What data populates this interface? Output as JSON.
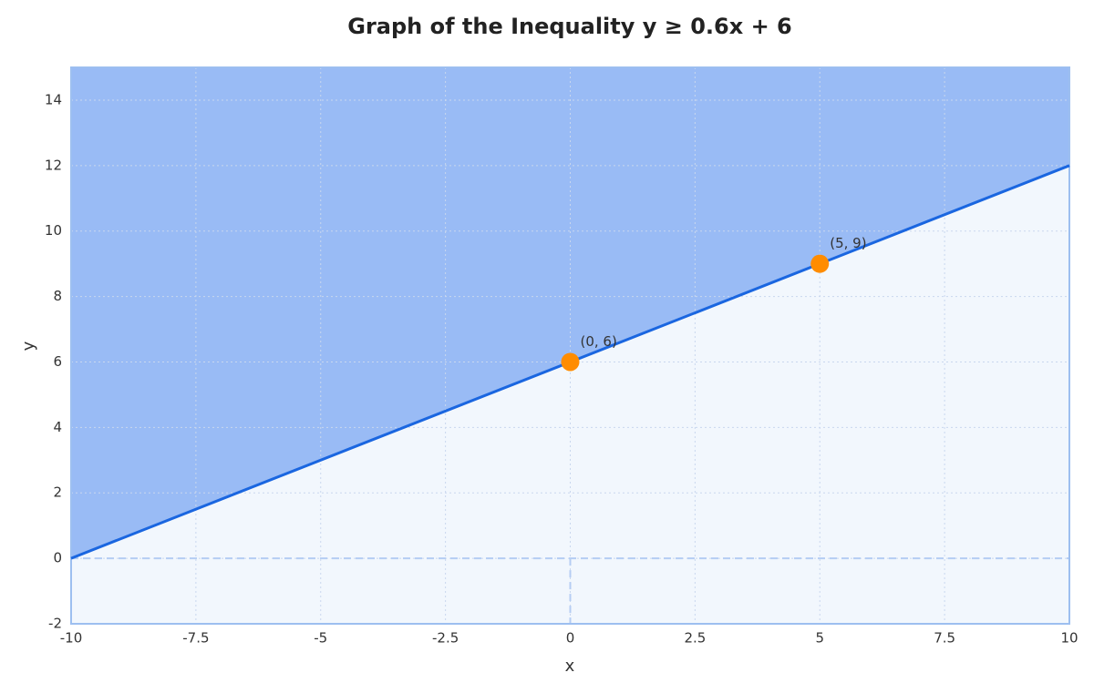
{
  "chart_data": {
    "type": "line",
    "title": "Graph of the Inequality y ≥ 0.6x + 6",
    "x_label": "x",
    "y_label": "y",
    "xlim": [
      -10,
      10
    ],
    "ylim": [
      -2,
      15
    ],
    "xticks": [
      -10,
      -7.5,
      -5,
      -2.5,
      0,
      2.5,
      5,
      7.5,
      10
    ],
    "yticks": [
      -2,
      0,
      2,
      4,
      6,
      8,
      10,
      12,
      14
    ],
    "grid": true,
    "shade": "above",
    "shade_color": "#99bbf5",
    "background_color": "#f2f7fd",
    "series": [
      {
        "x": [
          -10,
          10
        ],
        "values": [
          0,
          12
        ],
        "color": "#1a66e0"
      }
    ],
    "points": {
      "x": [
        0,
        5
      ],
      "values": [
        6,
        9
      ],
      "labels": [
        "(0, 6)",
        "(5, 9)"
      ],
      "color": "#ff8c00"
    }
  }
}
